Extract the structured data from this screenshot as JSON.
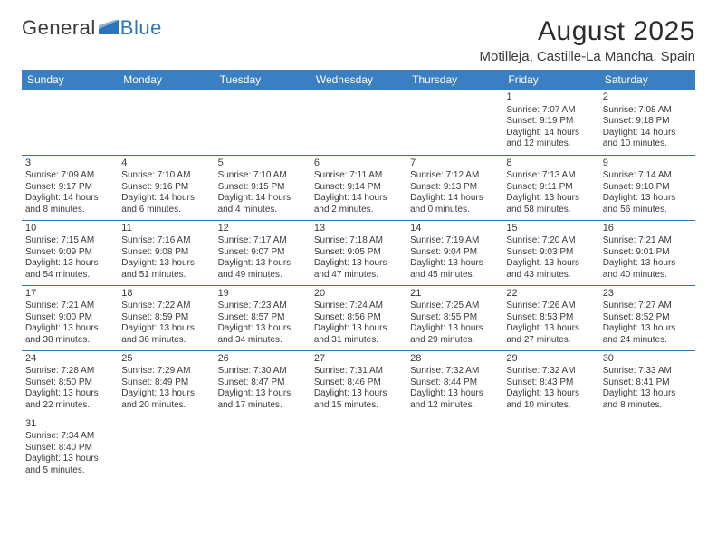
{
  "brand": {
    "text1": "General",
    "text2": "Blue"
  },
  "title": "August 2025",
  "location": "Motilleja, Castille-La Mancha, Spain",
  "colors": {
    "header_bg": "#3a7fc1",
    "header_fg": "#ffffff",
    "border": "#2a75bb",
    "text": "#3a3a3a",
    "background": "#ffffff"
  },
  "days": [
    "Sunday",
    "Monday",
    "Tuesday",
    "Wednesday",
    "Thursday",
    "Friday",
    "Saturday"
  ],
  "weeks": [
    [
      null,
      null,
      null,
      null,
      null,
      {
        "n": "1",
        "sr": "7:07 AM",
        "ss": "9:19 PM",
        "dl": "14 hours and 12 minutes."
      },
      {
        "n": "2",
        "sr": "7:08 AM",
        "ss": "9:18 PM",
        "dl": "14 hours and 10 minutes."
      }
    ],
    [
      {
        "n": "3",
        "sr": "7:09 AM",
        "ss": "9:17 PM",
        "dl": "14 hours and 8 minutes."
      },
      {
        "n": "4",
        "sr": "7:10 AM",
        "ss": "9:16 PM",
        "dl": "14 hours and 6 minutes."
      },
      {
        "n": "5",
        "sr": "7:10 AM",
        "ss": "9:15 PM",
        "dl": "14 hours and 4 minutes."
      },
      {
        "n": "6",
        "sr": "7:11 AM",
        "ss": "9:14 PM",
        "dl": "14 hours and 2 minutes."
      },
      {
        "n": "7",
        "sr": "7:12 AM",
        "ss": "9:13 PM",
        "dl": "14 hours and 0 minutes."
      },
      {
        "n": "8",
        "sr": "7:13 AM",
        "ss": "9:11 PM",
        "dl": "13 hours and 58 minutes."
      },
      {
        "n": "9",
        "sr": "7:14 AM",
        "ss": "9:10 PM",
        "dl": "13 hours and 56 minutes."
      }
    ],
    [
      {
        "n": "10",
        "sr": "7:15 AM",
        "ss": "9:09 PM",
        "dl": "13 hours and 54 minutes."
      },
      {
        "n": "11",
        "sr": "7:16 AM",
        "ss": "9:08 PM",
        "dl": "13 hours and 51 minutes."
      },
      {
        "n": "12",
        "sr": "7:17 AM",
        "ss": "9:07 PM",
        "dl": "13 hours and 49 minutes."
      },
      {
        "n": "13",
        "sr": "7:18 AM",
        "ss": "9:05 PM",
        "dl": "13 hours and 47 minutes."
      },
      {
        "n": "14",
        "sr": "7:19 AM",
        "ss": "9:04 PM",
        "dl": "13 hours and 45 minutes."
      },
      {
        "n": "15",
        "sr": "7:20 AM",
        "ss": "9:03 PM",
        "dl": "13 hours and 43 minutes."
      },
      {
        "n": "16",
        "sr": "7:21 AM",
        "ss": "9:01 PM",
        "dl": "13 hours and 40 minutes."
      }
    ],
    [
      {
        "n": "17",
        "sr": "7:21 AM",
        "ss": "9:00 PM",
        "dl": "13 hours and 38 minutes."
      },
      {
        "n": "18",
        "sr": "7:22 AM",
        "ss": "8:59 PM",
        "dl": "13 hours and 36 minutes."
      },
      {
        "n": "19",
        "sr": "7:23 AM",
        "ss": "8:57 PM",
        "dl": "13 hours and 34 minutes."
      },
      {
        "n": "20",
        "sr": "7:24 AM",
        "ss": "8:56 PM",
        "dl": "13 hours and 31 minutes."
      },
      {
        "n": "21",
        "sr": "7:25 AM",
        "ss": "8:55 PM",
        "dl": "13 hours and 29 minutes."
      },
      {
        "n": "22",
        "sr": "7:26 AM",
        "ss": "8:53 PM",
        "dl": "13 hours and 27 minutes."
      },
      {
        "n": "23",
        "sr": "7:27 AM",
        "ss": "8:52 PM",
        "dl": "13 hours and 24 minutes."
      }
    ],
    [
      {
        "n": "24",
        "sr": "7:28 AM",
        "ss": "8:50 PM",
        "dl": "13 hours and 22 minutes."
      },
      {
        "n": "25",
        "sr": "7:29 AM",
        "ss": "8:49 PM",
        "dl": "13 hours and 20 minutes."
      },
      {
        "n": "26",
        "sr": "7:30 AM",
        "ss": "8:47 PM",
        "dl": "13 hours and 17 minutes."
      },
      {
        "n": "27",
        "sr": "7:31 AM",
        "ss": "8:46 PM",
        "dl": "13 hours and 15 minutes."
      },
      {
        "n": "28",
        "sr": "7:32 AM",
        "ss": "8:44 PM",
        "dl": "13 hours and 12 minutes."
      },
      {
        "n": "29",
        "sr": "7:32 AM",
        "ss": "8:43 PM",
        "dl": "13 hours and 10 minutes."
      },
      {
        "n": "30",
        "sr": "7:33 AM",
        "ss": "8:41 PM",
        "dl": "13 hours and 8 minutes."
      }
    ],
    [
      {
        "n": "31",
        "sr": "7:34 AM",
        "ss": "8:40 PM",
        "dl": "13 hours and 5 minutes."
      },
      null,
      null,
      null,
      null,
      null,
      null
    ]
  ],
  "labels": {
    "sunrise": "Sunrise:",
    "sunset": "Sunset:",
    "daylight": "Daylight:"
  }
}
